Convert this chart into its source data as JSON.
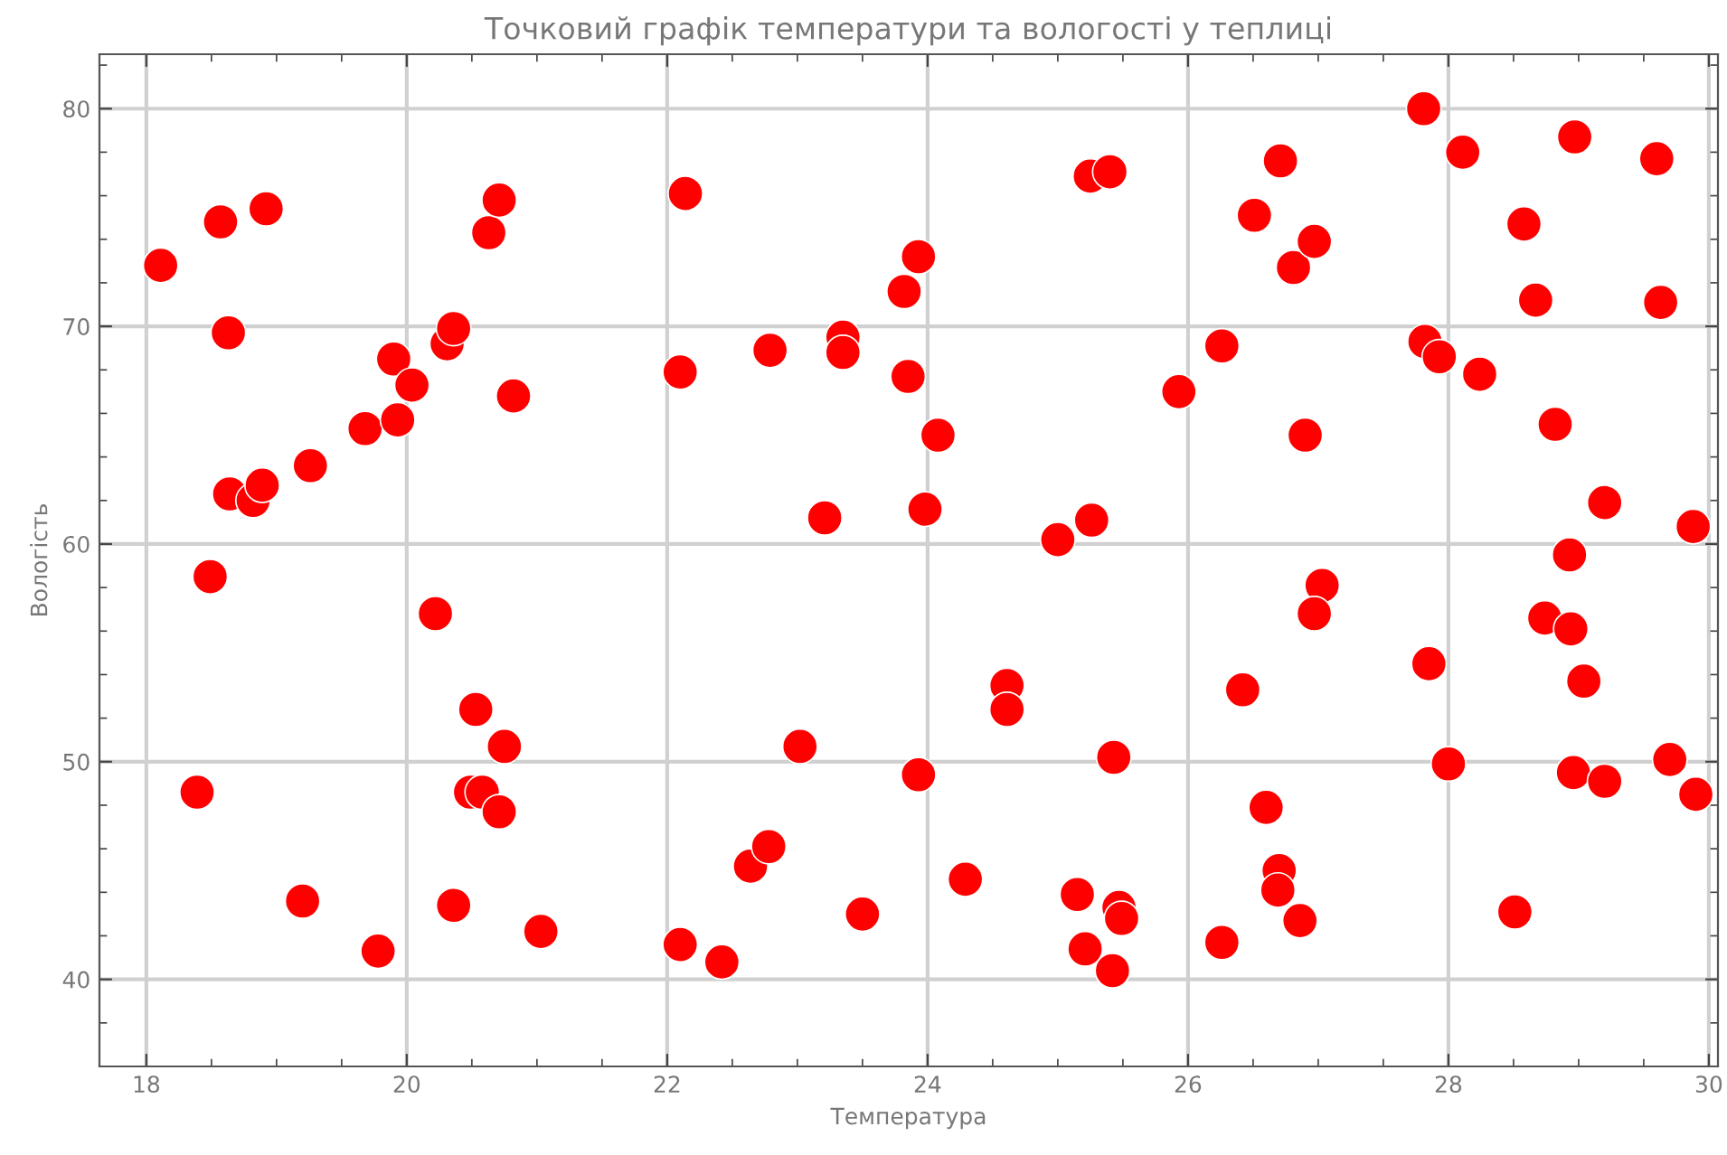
{
  "chart_data": {
    "type": "scatter",
    "title": "Точковий графік температури та вологості у теплиці",
    "xlabel": "Температура",
    "ylabel": "Вологість",
    "xlim": [
      17.64,
      30.07
    ],
    "ylim": [
      36.0,
      82.5
    ],
    "xticks": [
      18,
      20,
      22,
      24,
      26,
      28,
      30
    ],
    "yticks": [
      40,
      50,
      60,
      70,
      80
    ],
    "grid": true,
    "marker": "circle",
    "series": [
      {
        "color": "#ff0000",
        "x": [
          18.11,
          18.57,
          18.92,
          18.63,
          18.64,
          18.82,
          18.89,
          19.26,
          19.68,
          19.9,
          19.93,
          20.04,
          20.31,
          20.36,
          20.82,
          20.63,
          20.71,
          18.49,
          18.39,
          20.22,
          20.53,
          20.49,
          20.58,
          20.75,
          20.71,
          19.2,
          19.78,
          20.36,
          21.03,
          22.14,
          22.1,
          22.79,
          23.35,
          23.35,
          23.21,
          23.93,
          23.82,
          23.85,
          24.08,
          23.98,
          25.0,
          25.26,
          25.25,
          25.4,
          23.02,
          23.93,
          24.61,
          24.61,
          25.43,
          22.64,
          22.78,
          23.5,
          24.29,
          25.15,
          25.21,
          25.47,
          25.49,
          25.42,
          22.1,
          22.42,
          25.93,
          26.26,
          26.51,
          26.71,
          26.81,
          26.97,
          26.9,
          27.81,
          28.11,
          28.58,
          28.97,
          29.6,
          28.67,
          29.63,
          27.82,
          27.93,
          28.24,
          28.82,
          29.2,
          29.88,
          28.93,
          27.03,
          26.97,
          26.42,
          27.85,
          28.74,
          28.94,
          29.04,
          28.0,
          28.96,
          29.2,
          29.7,
          29.9,
          26.6,
          26.7,
          26.69,
          26.86,
          26.26,
          28.51
        ],
        "values": [
          72.8,
          74.8,
          75.4,
          69.7,
          62.3,
          62.0,
          62.7,
          63.6,
          65.3,
          68.5,
          65.7,
          67.3,
          69.2,
          69.9,
          66.8,
          74.3,
          75.8,
          58.5,
          48.6,
          56.8,
          52.4,
          48.6,
          48.6,
          50.7,
          47.7,
          43.6,
          41.3,
          43.4,
          42.2,
          76.1,
          67.9,
          68.9,
          69.5,
          68.8,
          61.2,
          73.2,
          71.6,
          67.7,
          65.0,
          61.6,
          60.2,
          61.1,
          76.9,
          77.1,
          50.7,
          49.4,
          53.5,
          52.4,
          50.2,
          45.2,
          46.1,
          43.0,
          44.6,
          43.9,
          41.4,
          43.3,
          42.8,
          40.4,
          41.6,
          40.8,
          67.0,
          69.1,
          75.1,
          77.6,
          72.7,
          73.9,
          65.0,
          80.0,
          78.0,
          74.7,
          78.7,
          77.7,
          71.2,
          71.1,
          69.3,
          68.6,
          67.8,
          65.5,
          61.9,
          60.8,
          59.5,
          58.1,
          56.8,
          53.3,
          54.5,
          56.6,
          56.1,
          53.7,
          49.9,
          49.5,
          49.1,
          50.1,
          48.5,
          47.9,
          45.0,
          44.1,
          42.7,
          41.7,
          43.1
        ]
      }
    ]
  }
}
